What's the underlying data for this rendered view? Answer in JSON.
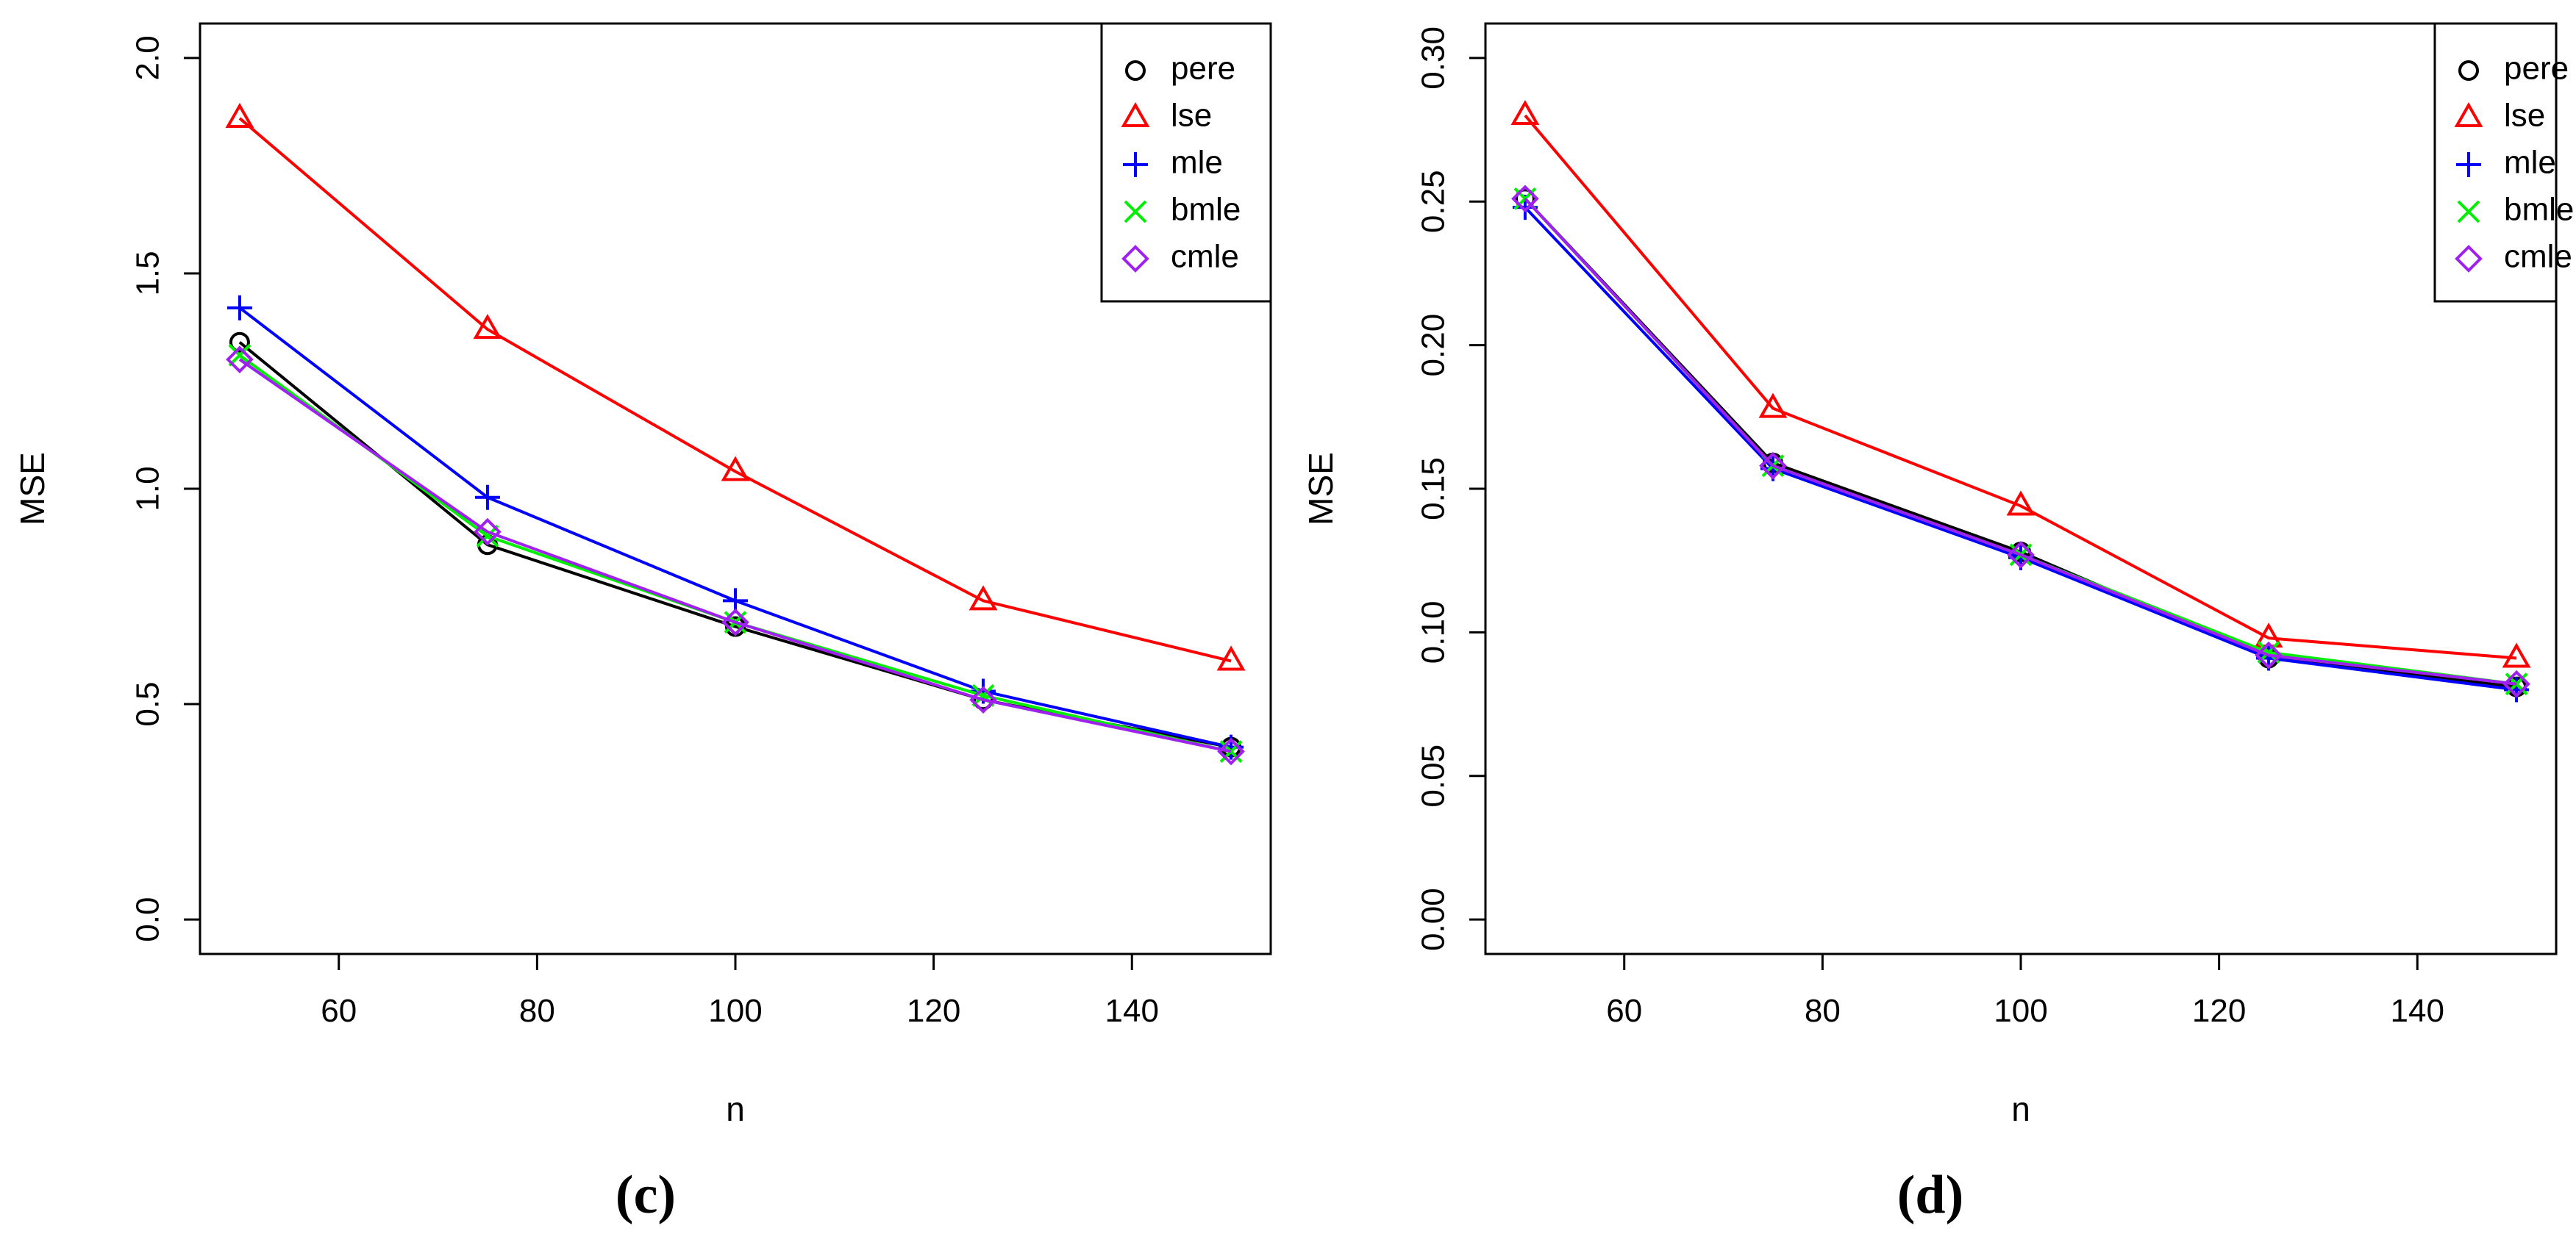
{
  "chart_data": [
    {
      "type": "line",
      "panel_label": "(c)",
      "xlabel": "n",
      "ylabel": "MSE",
      "xlim": [
        46,
        154
      ],
      "ylim": [
        -0.08,
        2.08
      ],
      "xticks": [
        60,
        80,
        100,
        120,
        140
      ],
      "xtick_labels": [
        "60",
        "80",
        "100",
        "120",
        "140"
      ],
      "yticks": [
        0.0,
        0.5,
        1.0,
        1.5,
        2.0
      ],
      "ytick_labels": [
        "0.0",
        "0.5",
        "1.0",
        "1.5",
        "2.0"
      ],
      "legend_position": "top-right",
      "x": [
        50,
        75,
        100,
        125,
        150
      ],
      "series": [
        {
          "name": "pere",
          "marker": "circle",
          "color": "#000000",
          "values": [
            1.34,
            0.87,
            0.68,
            0.51,
            0.4
          ]
        },
        {
          "name": "lse",
          "marker": "triangle",
          "color": "#ff0000",
          "values": [
            1.86,
            1.37,
            1.04,
            0.74,
            0.6
          ]
        },
        {
          "name": "mle",
          "marker": "plus",
          "color": "#0000ff",
          "values": [
            1.42,
            0.98,
            0.74,
            0.53,
            0.4
          ]
        },
        {
          "name": "bmle",
          "marker": "cross",
          "color": "#00ee00",
          "values": [
            1.31,
            0.89,
            0.69,
            0.52,
            0.39
          ]
        },
        {
          "name": "cmle",
          "marker": "diamond",
          "color": "#a020f0",
          "values": [
            1.3,
            0.9,
            0.69,
            0.51,
            0.39
          ]
        }
      ]
    },
    {
      "type": "line",
      "panel_label": "(d)",
      "xlabel": "n",
      "ylabel": "MSE",
      "xlim": [
        46,
        154
      ],
      "ylim": [
        -0.012,
        0.312
      ],
      "xticks": [
        60,
        80,
        100,
        120,
        140
      ],
      "xtick_labels": [
        "60",
        "80",
        "100",
        "120",
        "140"
      ],
      "yticks": [
        0.0,
        0.05,
        0.1,
        0.15,
        0.2,
        0.25,
        0.3
      ],
      "ytick_labels": [
        "0.00",
        "0.05",
        "0.10",
        "0.15",
        "0.20",
        "0.25",
        "0.30"
      ],
      "legend_position": "top-right",
      "x": [
        50,
        75,
        100,
        125,
        150
      ],
      "series": [
        {
          "name": "pere",
          "marker": "circle",
          "color": "#000000",
          "values": [
            0.251,
            0.159,
            0.128,
            0.091,
            0.081
          ]
        },
        {
          "name": "lse",
          "marker": "triangle",
          "color": "#ff0000",
          "values": [
            0.28,
            0.178,
            0.144,
            0.098,
            0.091
          ]
        },
        {
          "name": "mle",
          "marker": "plus",
          "color": "#0000ff",
          "values": [
            0.248,
            0.157,
            0.126,
            0.091,
            0.08
          ]
        },
        {
          "name": "bmle",
          "marker": "cross",
          "color": "#00ee00",
          "values": [
            0.251,
            0.158,
            0.127,
            0.093,
            0.082
          ]
        },
        {
          "name": "cmle",
          "marker": "diamond",
          "color": "#a020f0",
          "values": [
            0.251,
            0.158,
            0.127,
            0.092,
            0.082
          ]
        }
      ]
    }
  ]
}
